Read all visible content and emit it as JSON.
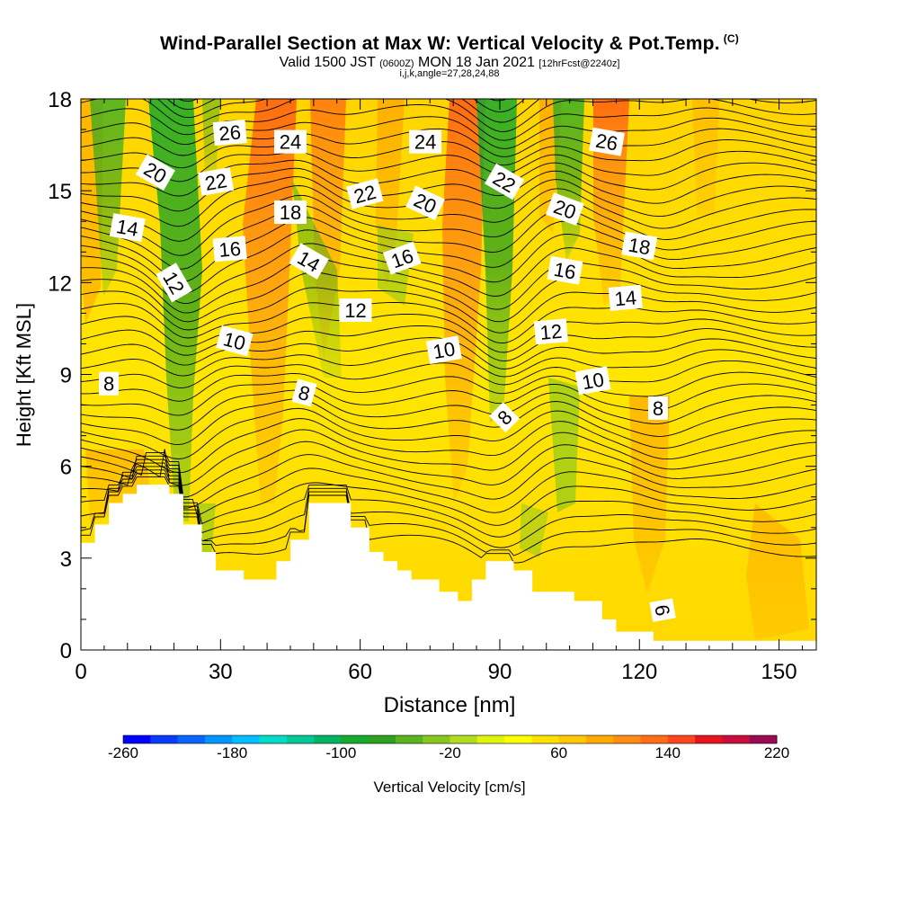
{
  "header": {
    "title": "Wind-Parallel Section at Max W: Vertical Velocity & Pot.Temp.",
    "title_mark": "(C)",
    "valid_main": "Valid 1500 JST",
    "valid_utc": "(0600Z)",
    "valid_date": "MON 18 Jan 2021",
    "valid_fcst": "[12hrFcst@2240z]",
    "indices": "i,j,k,angle=27,28,24,88"
  },
  "chart_data": {
    "type": "contour cross-section",
    "xlabel": "Distance [nm]",
    "ylabel": "Height [Kft MSL]",
    "xlim": [
      0,
      158
    ],
    "ylim": [
      0,
      18
    ],
    "x_ticks": [
      0,
      30,
      60,
      90,
      120,
      150
    ],
    "y_ticks": [
      0,
      3,
      6,
      9,
      12,
      15,
      18
    ],
    "terrain_kft": [
      [
        0,
        3.5
      ],
      [
        3,
        4.1
      ],
      [
        6,
        4.8
      ],
      [
        9,
        5.1
      ],
      [
        12,
        5.4
      ],
      [
        19,
        5.1
      ],
      [
        22,
        4.1
      ],
      [
        26,
        3.2
      ],
      [
        29,
        2.6
      ],
      [
        35,
        2.3
      ],
      [
        42,
        2.9
      ],
      [
        45,
        3.6
      ],
      [
        49,
        4.8
      ],
      [
        55,
        4.8
      ],
      [
        58,
        4.0
      ],
      [
        62,
        3.2
      ],
      [
        65,
        2.9
      ],
      [
        68,
        2.6
      ],
      [
        71,
        2.3
      ],
      [
        77,
        1.9
      ],
      [
        81,
        1.6
      ],
      [
        84,
        2.3
      ],
      [
        87,
        2.9
      ],
      [
        93,
        2.6
      ],
      [
        97,
        1.9
      ],
      [
        106,
        1.6
      ],
      [
        112,
        1.0
      ],
      [
        115,
        0.6
      ],
      [
        123,
        0.3
      ],
      [
        150,
        0.3
      ],
      [
        158,
        0.3
      ]
    ],
    "theta_contour_labels": [
      {
        "v": "26",
        "x": 32,
        "y": 16.9,
        "r": -5
      },
      {
        "v": "24",
        "x": 45,
        "y": 16.6,
        "r": 0
      },
      {
        "v": "24",
        "x": 74,
        "y": 16.6,
        "r": 0
      },
      {
        "v": "26",
        "x": 113,
        "y": 16.6,
        "r": 10
      },
      {
        "v": "20",
        "x": 16,
        "y": 15.6,
        "r": 30
      },
      {
        "v": "22",
        "x": 29,
        "y": 15.3,
        "r": -10
      },
      {
        "v": "22",
        "x": 61,
        "y": 14.9,
        "r": -15
      },
      {
        "v": "20",
        "x": 74,
        "y": 14.6,
        "r": 25
      },
      {
        "v": "22",
        "x": 91,
        "y": 15.3,
        "r": 30
      },
      {
        "v": "20",
        "x": 104,
        "y": 14.4,
        "r": 20
      },
      {
        "v": "18",
        "x": 45,
        "y": 14.3,
        "r": 0
      },
      {
        "v": "14",
        "x": 10,
        "y": 13.8,
        "r": 10
      },
      {
        "v": "16",
        "x": 32,
        "y": 13.1,
        "r": -5
      },
      {
        "v": "14",
        "x": 49,
        "y": 12.7,
        "r": 30
      },
      {
        "v": "16",
        "x": 69,
        "y": 12.8,
        "r": -20
      },
      {
        "v": "16",
        "x": 104,
        "y": 12.4,
        "r": 10
      },
      {
        "v": "18",
        "x": 120,
        "y": 13.2,
        "r": 10
      },
      {
        "v": "12",
        "x": 20,
        "y": 12.0,
        "r": 60
      },
      {
        "v": "14",
        "x": 117,
        "y": 11.5,
        "r": -5
      },
      {
        "v": "12",
        "x": 59,
        "y": 11.1,
        "r": 0
      },
      {
        "v": "12",
        "x": 101,
        "y": 10.4,
        "r": -5
      },
      {
        "v": "10",
        "x": 33,
        "y": 10.1,
        "r": 15
      },
      {
        "v": "10",
        "x": 78,
        "y": 9.8,
        "r": -10
      },
      {
        "v": "10",
        "x": 110,
        "y": 8.8,
        "r": -10
      },
      {
        "v": "8",
        "x": 6,
        "y": 8.7,
        "r": 0
      },
      {
        "v": "8",
        "x": 48,
        "y": 8.4,
        "r": 15
      },
      {
        "v": "8",
        "x": 91,
        "y": 7.6,
        "r": -45
      },
      {
        "v": "8",
        "x": 124,
        "y": 7.9,
        "r": 0
      },
      {
        "v": "6",
        "x": 125,
        "y": 1.3,
        "r": 80
      }
    ],
    "colorbar": {
      "label": "Vertical Velocity [cm/s]",
      "tick_labels": [
        "-260",
        "-180",
        "-100",
        "-20",
        "60",
        "140",
        "220"
      ],
      "min": -260,
      "max": 220,
      "step": 20,
      "colors": [
        "#0000ff",
        "#0a3cff",
        "#0a64ff",
        "#0096ff",
        "#00beff",
        "#00dcc8",
        "#00c896",
        "#00b464",
        "#14aa2d",
        "#2da01e",
        "#5ab41e",
        "#87c81e",
        "#b4dc1e",
        "#e1f50a",
        "#ffff00",
        "#ffe100",
        "#ffc800",
        "#ffaa00",
        "#ff8c14",
        "#ff6e14",
        "#ff461e",
        "#e6141e",
        "#c80f3c",
        "#9b0a55"
      ]
    }
  }
}
